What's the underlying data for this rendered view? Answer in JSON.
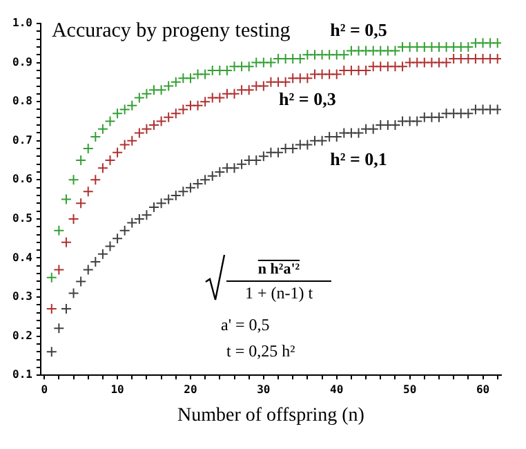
{
  "chart_data": {
    "type": "scatter",
    "title": "Accuracy by progeny testing",
    "xlabel": "Number of offspring (n)",
    "x": [
      1,
      2,
      3,
      4,
      5,
      6,
      7,
      8,
      9,
      10,
      11,
      12,
      13,
      14,
      15,
      16,
      17,
      18,
      19,
      20,
      21,
      22,
      23,
      24,
      25,
      26,
      27,
      28,
      29,
      30,
      31,
      32,
      33,
      34,
      35,
      36,
      37,
      38,
      39,
      40,
      41,
      42,
      43,
      44,
      45,
      46,
      47,
      48,
      49,
      50,
      51,
      52,
      53,
      54,
      55,
      56,
      57,
      58,
      59,
      60,
      61,
      62
    ],
    "series": [
      {
        "name": "h² = 0,5",
        "color": "#33a033",
        "values": [
          0.35,
          0.47,
          0.55,
          0.6,
          0.65,
          0.68,
          0.71,
          0.73,
          0.75,
          0.77,
          0.78,
          0.79,
          0.81,
          0.82,
          0.83,
          0.83,
          0.84,
          0.85,
          0.86,
          0.86,
          0.87,
          0.87,
          0.88,
          0.88,
          0.88,
          0.89,
          0.89,
          0.89,
          0.9,
          0.9,
          0.9,
          0.91,
          0.91,
          0.91,
          0.91,
          0.92,
          0.92,
          0.92,
          0.92,
          0.92,
          0.92,
          0.93,
          0.93,
          0.93,
          0.93,
          0.93,
          0.93,
          0.93,
          0.94,
          0.94,
          0.94,
          0.94,
          0.94,
          0.94,
          0.94,
          0.94,
          0.94,
          0.94,
          0.95,
          0.95,
          0.95,
          0.95
        ]
      },
      {
        "name": "h² = 0,3",
        "color": "#b03030",
        "values": [
          0.27,
          0.37,
          0.44,
          0.5,
          0.54,
          0.57,
          0.6,
          0.63,
          0.65,
          0.67,
          0.69,
          0.7,
          0.72,
          0.73,
          0.74,
          0.75,
          0.76,
          0.77,
          0.78,
          0.79,
          0.79,
          0.8,
          0.81,
          0.81,
          0.82,
          0.82,
          0.83,
          0.83,
          0.84,
          0.84,
          0.85,
          0.85,
          0.85,
          0.86,
          0.86,
          0.86,
          0.87,
          0.87,
          0.87,
          0.87,
          0.88,
          0.88,
          0.88,
          0.88,
          0.89,
          0.89,
          0.89,
          0.89,
          0.89,
          0.9,
          0.9,
          0.9,
          0.9,
          0.9,
          0.9,
          0.91,
          0.91,
          0.91,
          0.91,
          0.91,
          0.91,
          0.91
        ]
      },
      {
        "name": "h² = 0,1",
        "color": "#404040",
        "values": [
          0.16,
          0.22,
          0.27,
          0.31,
          0.34,
          0.37,
          0.39,
          0.41,
          0.43,
          0.45,
          0.47,
          0.49,
          0.5,
          0.51,
          0.53,
          0.54,
          0.55,
          0.56,
          0.57,
          0.58,
          0.59,
          0.6,
          0.61,
          0.62,
          0.63,
          0.63,
          0.64,
          0.65,
          0.65,
          0.66,
          0.67,
          0.67,
          0.68,
          0.68,
          0.69,
          0.69,
          0.7,
          0.7,
          0.71,
          0.71,
          0.72,
          0.72,
          0.72,
          0.73,
          0.73,
          0.74,
          0.74,
          0.74,
          0.75,
          0.75,
          0.75,
          0.76,
          0.76,
          0.76,
          0.77,
          0.77,
          0.77,
          0.77,
          0.78,
          0.78,
          0.78,
          0.78
        ]
      }
    ],
    "marker": "cross",
    "xlim": [
      -0.5,
      62.5
    ],
    "xticks": [
      0,
      {
        "value": 2,
        "label": null
      },
      {
        "value": 4,
        "label": null
      },
      {
        "value": 6,
        "label": null
      },
      {
        "value": 8,
        "label": null
      },
      10,
      {
        "value": 12,
        "label": null
      },
      {
        "value": 14,
        "label": null
      },
      {
        "value": 16,
        "label": null
      },
      {
        "value": 18,
        "label": null
      },
      20,
      {
        "value": 22,
        "label": null
      },
      {
        "value": 24,
        "label": null
      },
      {
        "value": 26,
        "label": null
      },
      {
        "value": 28,
        "label": null
      },
      30,
      {
        "value": 32,
        "label": null
      },
      {
        "value": 34,
        "label": null
      },
      {
        "value": 36,
        "label": null
      },
      {
        "value": 38,
        "label": null
      },
      40,
      {
        "value": 42,
        "label": null
      },
      {
        "value": 44,
        "label": null
      },
      {
        "value": 46,
        "label": null
      },
      {
        "value": 48,
        "label": null
      },
      50,
      {
        "value": 52,
        "label": null
      },
      {
        "value": 54,
        "label": null
      },
      {
        "value": 56,
        "label": null
      },
      {
        "value": 58,
        "label": null
      },
      60,
      {
        "value": 62,
        "label": null
      }
    ],
    "ylim": [
      0.1,
      1.0
    ],
    "yticks": [
      0.1,
      {
        "value": 0.12,
        "label": null
      },
      {
        "value": 0.14,
        "label": null
      },
      {
        "value": 0.16,
        "label": null
      },
      {
        "value": 0.18,
        "label": null
      },
      0.2,
      {
        "value": 0.22,
        "label": null
      },
      {
        "value": 0.24,
        "label": null
      },
      {
        "value": 0.26,
        "label": null
      },
      {
        "value": 0.28,
        "label": null
      },
      0.3,
      {
        "value": 0.32,
        "label": null
      },
      {
        "value": 0.34,
        "label": null
      },
      {
        "value": 0.36,
        "label": null
      },
      {
        "value": 0.38,
        "label": null
      },
      0.4,
      {
        "value": 0.42,
        "label": null
      },
      {
        "value": 0.44,
        "label": null
      },
      {
        "value": 0.46,
        "label": null
      },
      {
        "value": 0.48,
        "label": null
      },
      0.5,
      {
        "value": 0.52,
        "label": null
      },
      {
        "value": 0.54,
        "label": null
      },
      {
        "value": 0.56,
        "label": null
      },
      {
        "value": 0.58,
        "label": null
      },
      0.6,
      {
        "value": 0.62,
        "label": null
      },
      {
        "value": 0.64,
        "label": null
      },
      {
        "value": 0.66,
        "label": null
      },
      {
        "value": 0.68,
        "label": null
      },
      0.7,
      {
        "value": 0.72,
        "label": null
      },
      {
        "value": 0.74,
        "label": null
      },
      {
        "value": 0.76,
        "label": null
      },
      {
        "value": 0.78,
        "label": null
      },
      0.8,
      {
        "value": 0.82,
        "label": null
      },
      {
        "value": 0.84,
        "label": null
      },
      {
        "value": 0.86,
        "label": null
      },
      {
        "value": 0.88,
        "label": null
      },
      0.9,
      {
        "value": 0.92,
        "label": null
      },
      {
        "value": 0.94,
        "label": null
      },
      {
        "value": 0.96,
        "label": null
      },
      {
        "value": 0.98,
        "label": null
      },
      {
        "value": 1.0,
        "label": "1.0"
      }
    ],
    "annotations": [
      "n h²a'²",
      "1 + (n-1) t",
      "a' = 0,5",
      "t = 0,25 h²"
    ]
  }
}
